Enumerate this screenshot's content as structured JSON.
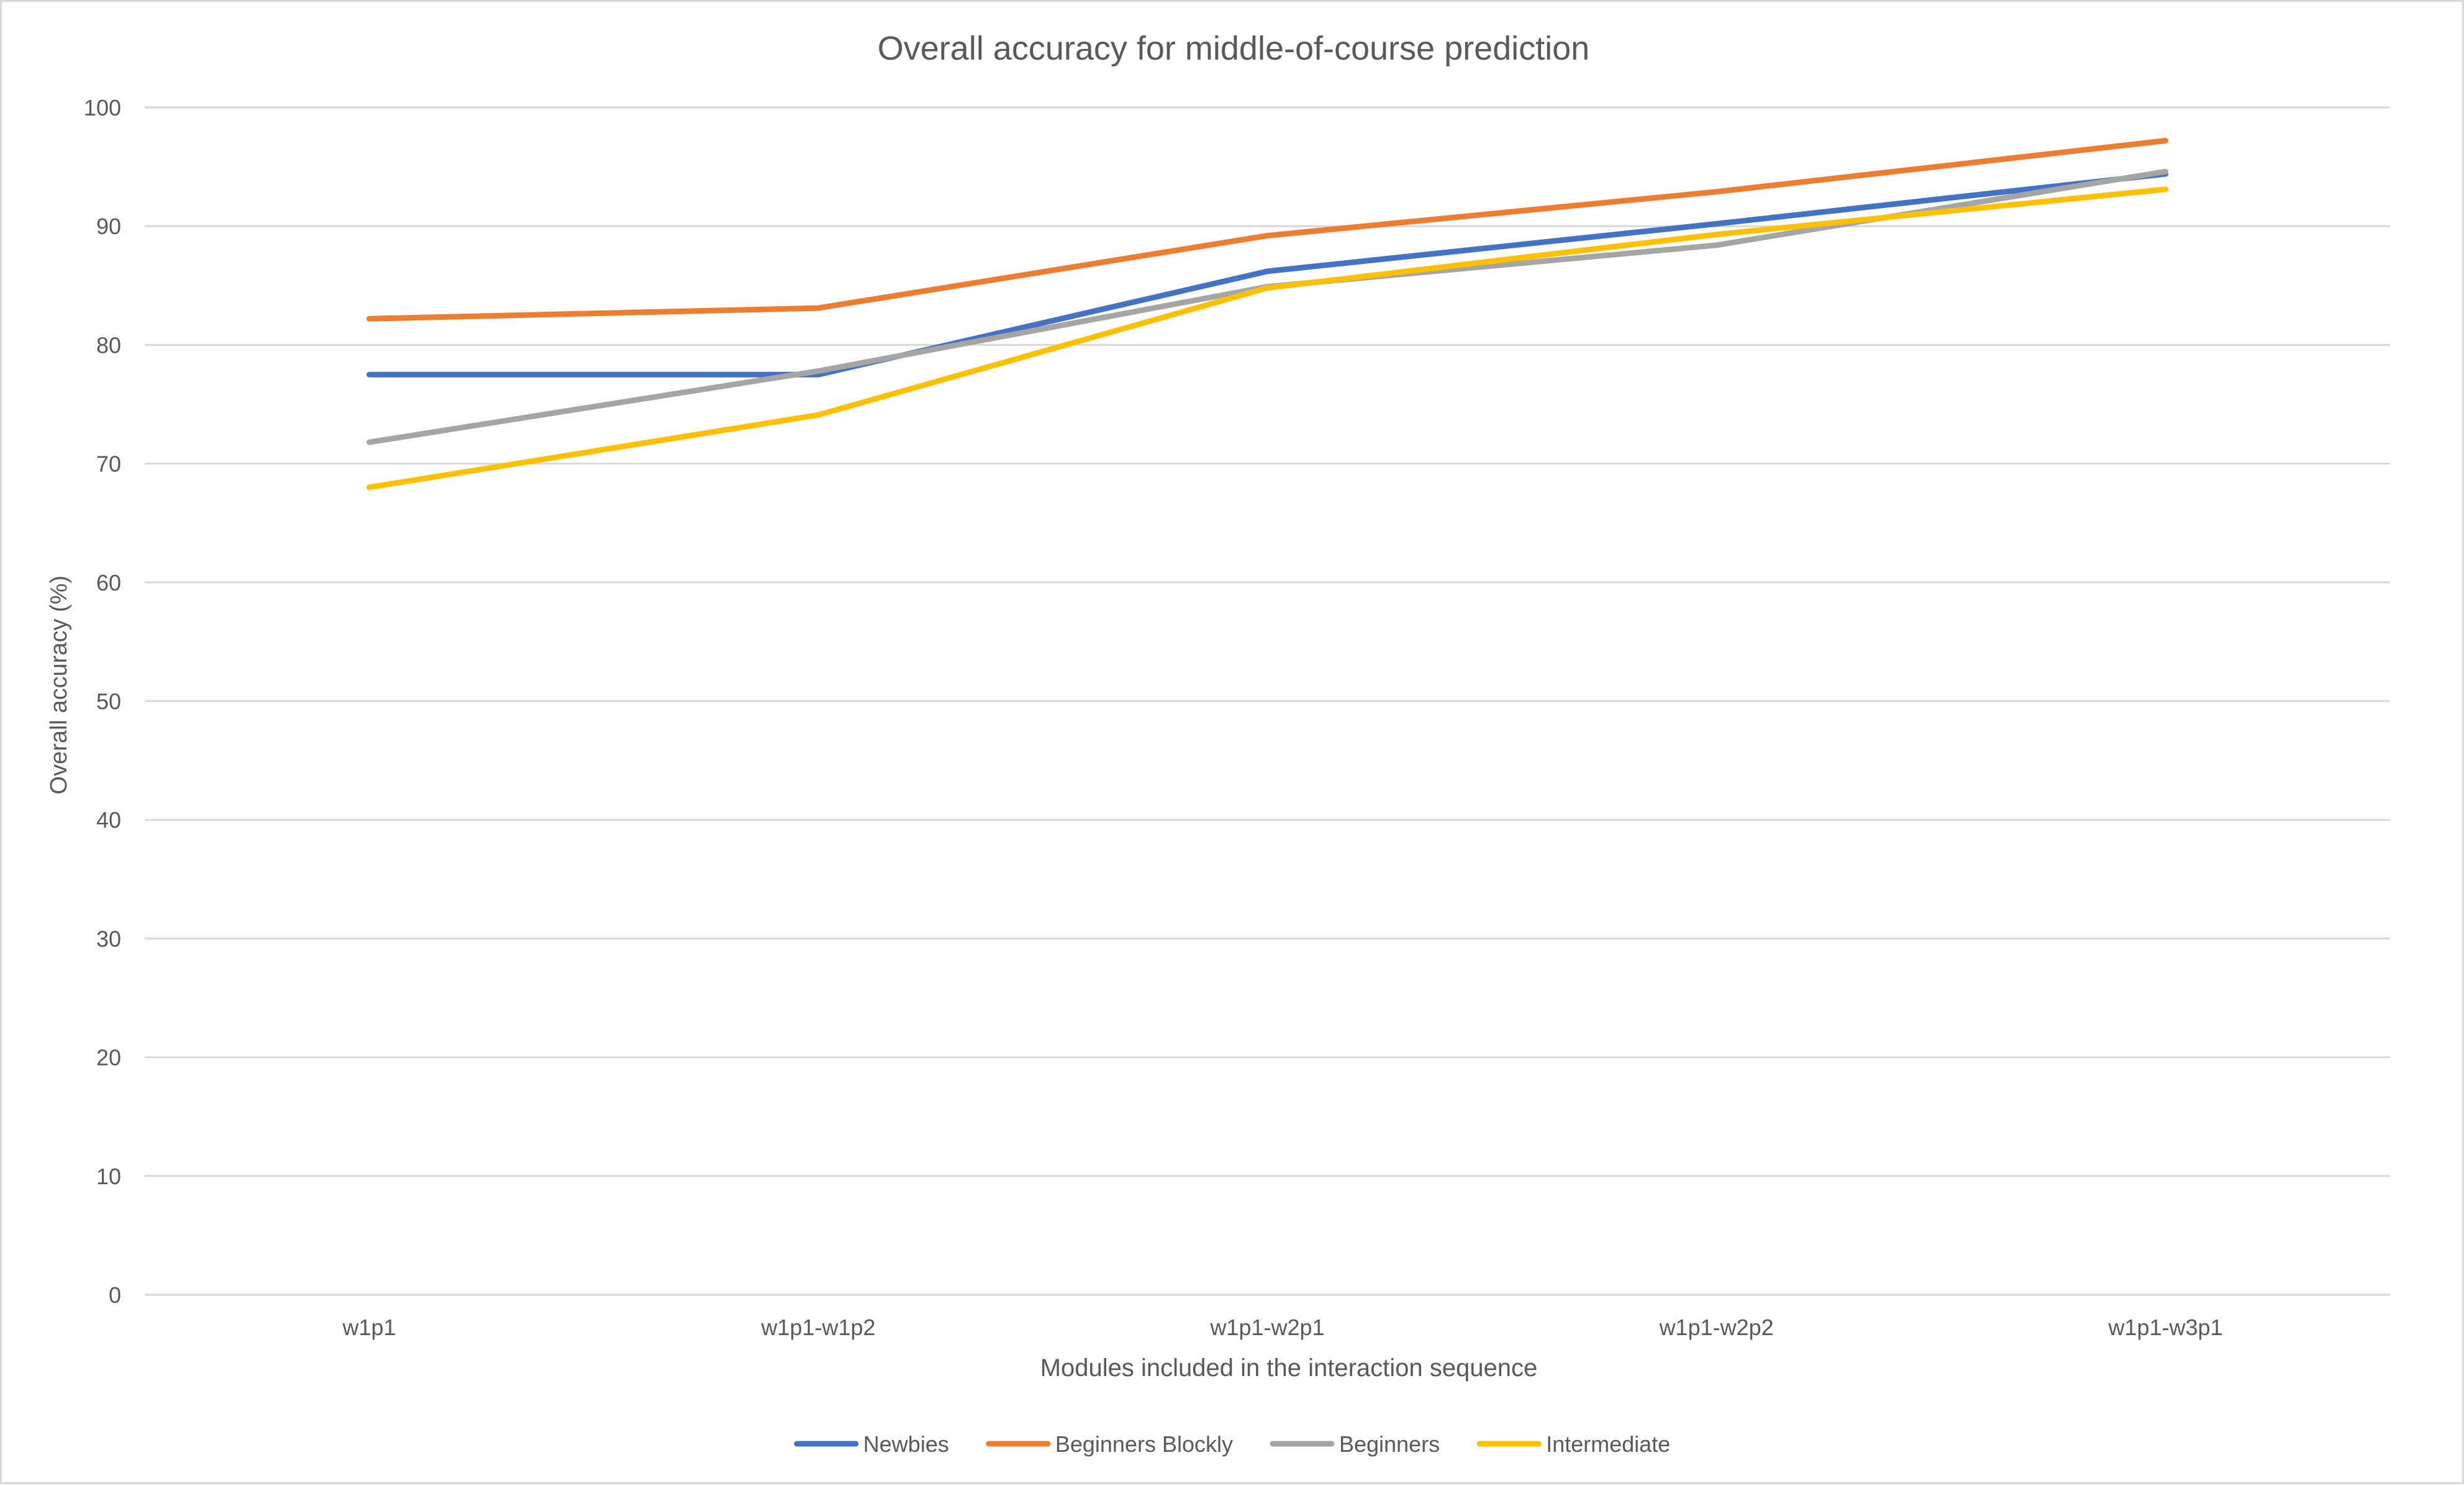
{
  "chart_data": {
    "type": "line",
    "title": "Overall accuracy for middle-of-course prediction",
    "xlabel": "Modules included in the interaction sequence",
    "ylabel": "Overall accuracy (%)",
    "categories": [
      "w1p1",
      "w1p1-w1p2",
      "w1p1-w2p1",
      "w1p1-w2p2",
      "w1p1-w3p1"
    ],
    "ylim": [
      0,
      100
    ],
    "yticks": [
      0,
      10,
      20,
      30,
      40,
      50,
      60,
      70,
      80,
      90,
      100
    ],
    "grid": true,
    "legend_position": "bottom",
    "series": [
      {
        "name": "Newbies",
        "color": "#4472C4",
        "values": [
          77.5,
          77.5,
          86.2,
          90.2,
          94.4
        ]
      },
      {
        "name": "Beginners Blockly",
        "color": "#ED7D31",
        "values": [
          82.2,
          83.1,
          89.2,
          92.9,
          97.2
        ]
      },
      {
        "name": "Beginners",
        "color": "#A5A5A5",
        "values": [
          71.8,
          77.8,
          84.9,
          88.4,
          94.6
        ]
      },
      {
        "name": "Intermediate",
        "color": "#FFC000",
        "values": [
          68.0,
          74.1,
          84.8,
          89.3,
          93.1
        ]
      }
    ]
  }
}
